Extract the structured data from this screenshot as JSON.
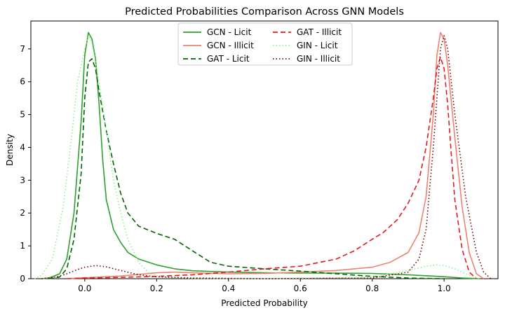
{
  "chart_data": {
    "type": "line",
    "title": "Predicted Probabilities Comparison Across GNN Models",
    "xlabel": "Predicted Probability",
    "ylabel": "Density",
    "xlim": [
      -0.15,
      1.15
    ],
    "ylim": [
      0,
      7.85
    ],
    "x_ticks": [
      0.0,
      0.2,
      0.4,
      0.6,
      0.8,
      1.0
    ],
    "x_tick_labels": [
      "0.0",
      "0.2",
      "0.4",
      "0.6",
      "0.8",
      "1.0"
    ],
    "y_ticks": [
      0,
      1,
      2,
      3,
      4,
      5,
      6,
      7
    ],
    "y_tick_labels": [
      "0",
      "1",
      "2",
      "3",
      "4",
      "5",
      "6",
      "7"
    ],
    "grid": false,
    "legend_position": "top-center",
    "legend_columns": 2,
    "series": [
      {
        "name": "GCN - Licit",
        "color": "#2ca02c",
        "dash": "solid",
        "points": [
          [
            -0.12,
            0
          ],
          [
            -0.1,
            0.02
          ],
          [
            -0.07,
            0.15
          ],
          [
            -0.05,
            0.6
          ],
          [
            -0.03,
            2.0
          ],
          [
            -0.01,
            4.8
          ],
          [
            0.0,
            6.8
          ],
          [
            0.01,
            7.5
          ],
          [
            0.02,
            7.3
          ],
          [
            0.03,
            6.7
          ],
          [
            0.04,
            5.3
          ],
          [
            0.05,
            3.6
          ],
          [
            0.06,
            2.4
          ],
          [
            0.08,
            1.5
          ],
          [
            0.1,
            1.1
          ],
          [
            0.12,
            0.8
          ],
          [
            0.15,
            0.6
          ],
          [
            0.2,
            0.42
          ],
          [
            0.25,
            0.3
          ],
          [
            0.3,
            0.24
          ],
          [
            0.4,
            0.2
          ],
          [
            0.5,
            0.18
          ],
          [
            0.6,
            0.17
          ],
          [
            0.7,
            0.17
          ],
          [
            0.8,
            0.16
          ],
          [
            0.9,
            0.12
          ],
          [
            1.0,
            0.06
          ],
          [
            1.05,
            0.02
          ],
          [
            1.1,
            0
          ]
        ]
      },
      {
        "name": "GCN - Illicit",
        "color": "#f08070",
        "dash": "solid",
        "points": [
          [
            -0.05,
            0
          ],
          [
            0.0,
            0.03
          ],
          [
            0.1,
            0.08
          ],
          [
            0.2,
            0.18
          ],
          [
            0.25,
            0.2
          ],
          [
            0.3,
            0.18
          ],
          [
            0.4,
            0.15
          ],
          [
            0.5,
            0.16
          ],
          [
            0.6,
            0.2
          ],
          [
            0.7,
            0.25
          ],
          [
            0.8,
            0.35
          ],
          [
            0.85,
            0.5
          ],
          [
            0.9,
            0.8
          ],
          [
            0.93,
            1.4
          ],
          [
            0.95,
            2.5
          ],
          [
            0.97,
            5.0
          ],
          [
            0.98,
            6.8
          ],
          [
            0.99,
            7.5
          ],
          [
            1.0,
            7.3
          ],
          [
            1.01,
            6.5
          ],
          [
            1.03,
            4.3
          ],
          [
            1.05,
            2.2
          ],
          [
            1.07,
            0.8
          ],
          [
            1.09,
            0.15
          ],
          [
            1.11,
            0
          ]
        ]
      },
      {
        "name": "GAT - Licit",
        "color": "#006400",
        "dash": "dash",
        "points": [
          [
            -0.1,
            0
          ],
          [
            -0.07,
            0.05
          ],
          [
            -0.05,
            0.3
          ],
          [
            -0.03,
            1.2
          ],
          [
            -0.01,
            3.2
          ],
          [
            0.0,
            5.5
          ],
          [
            0.01,
            6.6
          ],
          [
            0.02,
            6.7
          ],
          [
            0.03,
            6.4
          ],
          [
            0.04,
            5.7
          ],
          [
            0.06,
            4.5
          ],
          [
            0.08,
            3.5
          ],
          [
            0.1,
            2.6
          ],
          [
            0.12,
            2.0
          ],
          [
            0.15,
            1.6
          ],
          [
            0.2,
            1.38
          ],
          [
            0.25,
            1.2
          ],
          [
            0.3,
            0.85
          ],
          [
            0.35,
            0.5
          ],
          [
            0.4,
            0.38
          ],
          [
            0.5,
            0.3
          ],
          [
            0.6,
            0.23
          ],
          [
            0.7,
            0.15
          ],
          [
            0.8,
            0.07
          ],
          [
            0.9,
            0.02
          ],
          [
            1.0,
            0
          ]
        ]
      },
      {
        "name": "GAT - Illicit",
        "color": "#e31a1c",
        "dash": "dash",
        "points": [
          [
            -0.05,
            0
          ],
          [
            0.0,
            0.02
          ],
          [
            0.1,
            0.04
          ],
          [
            0.2,
            0.07
          ],
          [
            0.3,
            0.12
          ],
          [
            0.4,
            0.2
          ],
          [
            0.5,
            0.3
          ],
          [
            0.6,
            0.38
          ],
          [
            0.7,
            0.6
          ],
          [
            0.75,
            0.85
          ],
          [
            0.8,
            1.2
          ],
          [
            0.83,
            1.4
          ],
          [
            0.87,
            1.8
          ],
          [
            0.9,
            2.3
          ],
          [
            0.93,
            3.0
          ],
          [
            0.95,
            4.0
          ],
          [
            0.97,
            5.5
          ],
          [
            0.98,
            6.4
          ],
          [
            0.99,
            6.75
          ],
          [
            1.0,
            6.4
          ],
          [
            1.01,
            5.3
          ],
          [
            1.02,
            3.8
          ],
          [
            1.03,
            2.4
          ],
          [
            1.05,
            0.9
          ],
          [
            1.07,
            0.2
          ],
          [
            1.09,
            0
          ]
        ]
      },
      {
        "name": "GIN - Licit",
        "color": "#90ee90",
        "dash": "dot",
        "points": [
          [
            -0.14,
            0
          ],
          [
            -0.12,
            0.1
          ],
          [
            -0.09,
            0.6
          ],
          [
            -0.06,
            2.2
          ],
          [
            -0.04,
            4.0
          ],
          [
            -0.02,
            6.0
          ],
          [
            0.0,
            7.0
          ],
          [
            0.01,
            7.4
          ],
          [
            0.02,
            7.2
          ],
          [
            0.04,
            6.0
          ],
          [
            0.06,
            4.5
          ],
          [
            0.08,
            3.0
          ],
          [
            0.1,
            2.0
          ],
          [
            0.12,
            1.2
          ],
          [
            0.15,
            0.5
          ],
          [
            0.18,
            0.15
          ],
          [
            0.22,
            0.04
          ],
          [
            0.3,
            0.01
          ],
          [
            0.5,
            0
          ],
          [
            0.8,
            0.05
          ],
          [
            0.9,
            0.25
          ],
          [
            0.95,
            0.38
          ],
          [
            0.98,
            0.42
          ],
          [
            1.0,
            0.4
          ],
          [
            1.03,
            0.3
          ],
          [
            1.06,
            0.15
          ],
          [
            1.1,
            0
          ]
        ]
      },
      {
        "name": "GIN - Illicit",
        "color": "#7b0000",
        "dash": "dot",
        "points": [
          [
            -0.12,
            0
          ],
          [
            -0.08,
            0.05
          ],
          [
            -0.05,
            0.15
          ],
          [
            -0.02,
            0.28
          ],
          [
            0.0,
            0.35
          ],
          [
            0.03,
            0.4
          ],
          [
            0.06,
            0.36
          ],
          [
            0.1,
            0.25
          ],
          [
            0.15,
            0.12
          ],
          [
            0.2,
            0.06
          ],
          [
            0.3,
            0.02
          ],
          [
            0.5,
            0
          ],
          [
            0.8,
            0.02
          ],
          [
            0.9,
            0.2
          ],
          [
            0.93,
            0.6
          ],
          [
            0.95,
            1.5
          ],
          [
            0.97,
            4.0
          ],
          [
            0.99,
            7.0
          ],
          [
            1.0,
            7.4
          ],
          [
            1.01,
            7.0
          ],
          [
            1.03,
            5.0
          ],
          [
            1.06,
            2.5
          ],
          [
            1.09,
            0.8
          ],
          [
            1.11,
            0.2
          ],
          [
            1.13,
            0
          ]
        ]
      }
    ]
  }
}
